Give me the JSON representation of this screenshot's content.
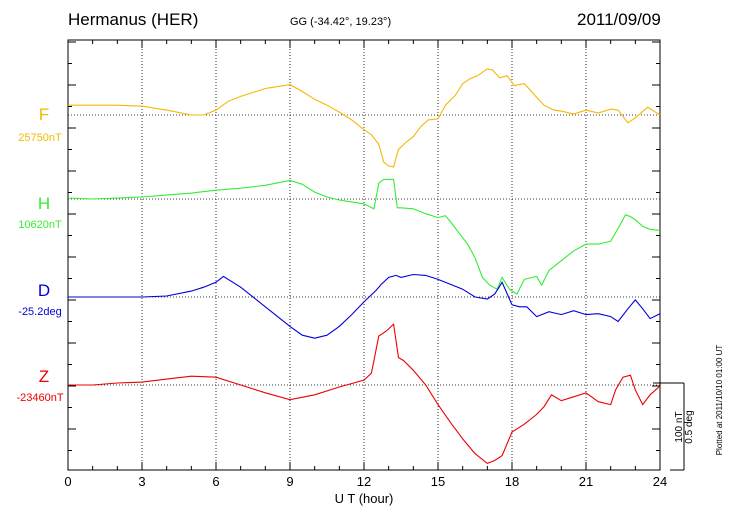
{
  "header": {
    "station": "Hermanus (HER)",
    "coords": "GG (-34.42°,  19.23°)",
    "date": "2011/09/09"
  },
  "scale": {
    "line1": "100 nT",
    "line2": "0.5 deg"
  },
  "plotted_note": "Plotted at 2011/10/10 01:00 UT",
  "chart_data": {
    "type": "line",
    "title": "Hermanus (HER)",
    "xlabel": "U T (hour)",
    "ylabel": "",
    "xlim": [
      0,
      24
    ],
    "xticks": [
      "0",
      "3",
      "6",
      "9",
      "12",
      "15",
      "18",
      "21",
      "24"
    ],
    "grid": true,
    "series": [
      {
        "name": "F",
        "baseline_label": "25750nT",
        "color": "#f5b800",
        "unit": "nT",
        "baseline": 25750,
        "x": [
          0,
          1,
          2,
          3,
          4,
          5,
          5.5,
          6,
          6.5,
          7,
          7.5,
          8,
          8.5,
          9,
          9.5,
          10,
          10.5,
          11,
          11.5,
          12,
          12.3,
          12.6,
          12.8,
          13,
          13.2,
          13.4,
          13.7,
          14,
          14.3,
          14.6,
          15,
          15.3,
          15.7,
          16,
          16.3,
          16.6,
          17,
          17.2,
          17.5,
          17.8,
          18.1,
          18.5,
          19,
          19.3,
          19.7,
          20,
          20.5,
          21,
          21.5,
          22,
          22.3,
          22.7,
          23,
          23.5,
          24
        ],
        "values": [
          10,
          10,
          10,
          9,
          5,
          0,
          0,
          5,
          14,
          19,
          23,
          27,
          29,
          31,
          24,
          16,
          10,
          3,
          -5,
          -15,
          -20,
          -30,
          -48,
          -52,
          -53,
          -35,
          -28,
          -22,
          -12,
          -5,
          -4,
          10,
          20,
          32,
          37,
          40,
          47,
          46,
          38,
          40,
          30,
          32,
          18,
          10,
          5,
          4,
          1,
          5,
          2,
          6,
          5,
          -8,
          -3,
          8,
          0
        ]
      },
      {
        "name": "H",
        "baseline_label": "10620nT",
        "color": "#33ee33",
        "unit": "nT",
        "baseline": 10620,
        "x": [
          0,
          1,
          2,
          3,
          4,
          5,
          6,
          7,
          8,
          9,
          9.5,
          10,
          10.5,
          11,
          11.5,
          12,
          12.4,
          12.6,
          12.8,
          13.2,
          13.35,
          13.5,
          14,
          14.5,
          15,
          15.3,
          15.5,
          15.8,
          16.2,
          16.5,
          16.8,
          17.1,
          17.4,
          17.6,
          17.9,
          18.2,
          18.5,
          19,
          19.2,
          19.5,
          20,
          20.5,
          21,
          21.5,
          22,
          22.3,
          22.6,
          22.8,
          23,
          23.3,
          23.6,
          24
        ],
        "values": [
          1,
          0,
          1,
          2,
          4,
          6,
          9,
          11,
          14,
          19,
          15,
          7,
          2,
          -1,
          -3,
          -5,
          -10,
          16,
          20,
          20,
          -9,
          -9,
          -10,
          -15,
          -19,
          -17,
          -23,
          -33,
          -46,
          -60,
          -80,
          -88,
          -92,
          -80,
          -92,
          -97,
          -82,
          -79,
          -88,
          -73,
          -63,
          -53,
          -46,
          -46,
          -43,
          -30,
          -16,
          -18,
          -21,
          -28,
          -31,
          -32
        ]
      },
      {
        "name": "D",
        "baseline_label": "-25.2deg",
        "color": "#0000dd",
        "unit": "deg",
        "baseline": -25.2,
        "x": [
          0,
          1,
          2,
          3,
          4,
          5,
          5.5,
          6,
          6.3,
          7,
          8,
          9,
          9.5,
          10,
          10.5,
          11,
          11.5,
          12,
          12.5,
          12.7,
          13,
          13.3,
          13.5,
          14,
          14.5,
          15,
          15.5,
          16,
          16.5,
          17,
          17.3,
          17.6,
          18,
          18.3,
          18.6,
          19,
          19.5,
          20,
          20.5,
          21,
          21.5,
          22,
          22.3,
          22.7,
          23,
          23.3,
          23.6,
          24
        ],
        "values": [
          0,
          0,
          0,
          0,
          1,
          6,
          10,
          15,
          21,
          10,
          -10,
          -30,
          -39,
          -42,
          -39,
          -30,
          -18,
          -5,
          7,
          13,
          20,
          22,
          20,
          23,
          22,
          18,
          13,
          8,
          0,
          -2,
          3,
          15,
          -8,
          -10,
          -10,
          -20,
          -15,
          -18,
          -14,
          -18,
          -17,
          -20,
          -25,
          -12,
          -3,
          -12,
          -22,
          -17
        ]
      },
      {
        "name": "Z",
        "baseline_label": "-23460nT",
        "color": "#ee0000",
        "unit": "nT",
        "baseline": -23460,
        "x": [
          0,
          1,
          2,
          3,
          4,
          5,
          6,
          7,
          8,
          9,
          10,
          11,
          12,
          12.3,
          12.6,
          12.9,
          13.2,
          13.4,
          13.6,
          14,
          14.5,
          15,
          15.5,
          16,
          16.5,
          17,
          17.3,
          17.6,
          18,
          18.5,
          19,
          19.3,
          19.6,
          20,
          20.5,
          21,
          21.5,
          22,
          22.2,
          22.5,
          22.8,
          23,
          23.3,
          23.6,
          24
        ],
        "values": [
          0,
          0,
          2,
          3,
          6,
          9,
          8,
          0,
          -8,
          -15,
          -10,
          -2,
          5,
          12,
          50,
          55,
          62,
          28,
          25,
          15,
          0,
          -20,
          -38,
          -55,
          -70,
          -80,
          -77,
          -72,
          -48,
          -40,
          -30,
          -22,
          -10,
          -16,
          -12,
          -8,
          -17,
          -20,
          -5,
          8,
          10,
          -5,
          -20,
          -10,
          -1
        ]
      }
    ]
  }
}
